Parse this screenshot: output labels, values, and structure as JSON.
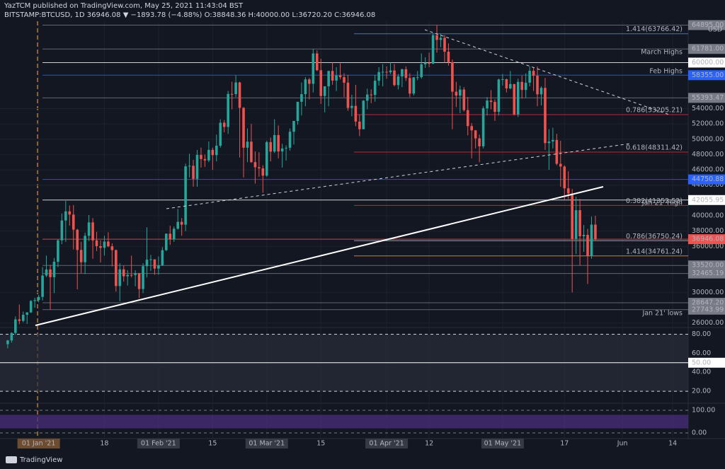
{
  "chart_data": {
    "type": "candlestick",
    "title": "YazTCM published on TradingView.com, May 25, 2021 11:43:04 BST",
    "subtitle": "BITSTAMP:BTCUSD, 1D  36946.08 ▼ −1893.78 (−4.88%) O:38848.36 H:40000.00 L:36720.20 C:36946.08",
    "unit": "USD",
    "footer": "TradingView",
    "up_color": "#26a69a",
    "down_color": "#ef5350",
    "grid": true,
    "xlim": [
      "2020-12-22",
      "2021-06-18"
    ],
    "xticks": [
      {
        "value": "2021-01-01",
        "label": "01 Jan '21"
      },
      {
        "value": "2021-01-18",
        "label": "18"
      },
      {
        "value": "2021-02-01",
        "label": "01 Feb '21"
      },
      {
        "value": "2021-02-15",
        "label": "15"
      },
      {
        "value": "2021-03-01",
        "label": "01 Mar '21"
      },
      {
        "value": "2021-03-15",
        "label": "15"
      },
      {
        "value": "2021-04-01",
        "label": "01 Apr '21"
      },
      {
        "value": "2021-04-12",
        "label": "12"
      },
      {
        "value": "2021-05-01",
        "label": "01 May '21"
      },
      {
        "value": "2021-05-17",
        "label": "17"
      },
      {
        "value": "2021-06-01",
        "label": "Jun"
      },
      {
        "value": "2021-06-14",
        "label": "14"
      }
    ],
    "ylim": [
      25600,
      65400
    ],
    "yticks": [
      {
        "value": 26000,
        "label": "26000.00"
      },
      {
        "value": 30000,
        "label": "30000.00"
      },
      {
        "value": 36000,
        "label": "36000.00"
      },
      {
        "value": 38000,
        "label": "38000.00"
      },
      {
        "value": 40000,
        "label": "40000.00"
      },
      {
        "value": 44000,
        "label": "44000.00"
      },
      {
        "value": 46000,
        "label": "46000.00"
      },
      {
        "value": 48000,
        "label": "48000.00"
      },
      {
        "value": 50000,
        "label": "50000.00"
      },
      {
        "value": 52000,
        "label": "52000.00"
      },
      {
        "value": 54000,
        "label": "54000.00"
      }
    ],
    "levels": [
      {
        "value": 64895,
        "label": "64895.00",
        "color": "#787b86"
      },
      {
        "value": 61781,
        "label": "61781.00",
        "color": "#787b86"
      },
      {
        "value": 60000,
        "label": "60000.00",
        "color": "#ffffff"
      },
      {
        "value": 58355,
        "label": "58355.00",
        "color": "#2962ff"
      },
      {
        "value": 55393.47,
        "label": "55393.47",
        "color": "#787b86"
      },
      {
        "value": 44750.88,
        "label": "44750.88",
        "color": "#2962ff"
      },
      {
        "value": 42055.95,
        "label": "42055.95",
        "color": "#ffffff"
      },
      {
        "value": 36946.08,
        "label": "36946.08",
        "color": "#ef5350"
      },
      {
        "value": 33520,
        "label": "33520.00",
        "color": "#787b86"
      },
      {
        "value": 32465.19,
        "label": "32465.19",
        "color": "#787b86"
      },
      {
        "value": 28647.2,
        "label": "28647.20",
        "color": "#787b86"
      },
      {
        "value": 27743.99,
        "label": "27743.99",
        "color": "#787b86"
      }
    ],
    "fib_levels": [
      {
        "value": 63766.42,
        "label": "1.414(63766.42)",
        "color": "#5b9cf6"
      },
      {
        "value": 53205.21,
        "label": "0.786(53205.21)",
        "color": "#f23645"
      },
      {
        "value": 48311.42,
        "label": "0.618(48311.42)",
        "color": "#f23645"
      },
      {
        "value": 41352.52,
        "label": "0.382(41352.52)",
        "color": "#f23645"
      },
      {
        "value": 36750.24,
        "label": "0.786(36750.24)",
        "color": "#d1d4dc"
      },
      {
        "value": 34761.24,
        "label": "1.414(34761.24)",
        "color": "#fbc02d"
      }
    ],
    "annotations": [
      "March Highs",
      "Feb Highs",
      "Jan 21' High",
      "Jan 21' lows"
    ],
    "rsi_ylim": [
      8.9,
      84.8
    ],
    "rsi_yticks": [
      {
        "value": 80,
        "label": "80.00"
      },
      {
        "value": 60,
        "label": "60.00"
      },
      {
        "value": 50,
        "label": "50.00"
      },
      {
        "value": 40,
        "label": "40.00"
      },
      {
        "value": 20,
        "label": "20.00"
      }
    ],
    "stoch_ylim": [
      -25,
      125
    ],
    "stoch_yticks": [
      {
        "value": 100,
        "label": "100.00"
      },
      {
        "value": 0,
        "label": "0.00"
      }
    ],
    "x": [
      "2020-12-24",
      "2020-12-25",
      "2020-12-26",
      "2020-12-27",
      "2020-12-28",
      "2020-12-29",
      "2020-12-30",
      "2020-12-31",
      "2021-01-01",
      "2021-01-02",
      "2021-01-03",
      "2021-01-04",
      "2021-01-05",
      "2021-01-06",
      "2021-01-07",
      "2021-01-08",
      "2021-01-09",
      "2021-01-10",
      "2021-01-11",
      "2021-01-12",
      "2021-01-13",
      "2021-01-14",
      "2021-01-15",
      "2021-01-16",
      "2021-01-17",
      "2021-01-18",
      "2021-01-19",
      "2021-01-20",
      "2021-01-21",
      "2021-01-22",
      "2021-01-23",
      "2021-01-24",
      "2021-01-25",
      "2021-01-26",
      "2021-01-27",
      "2021-01-28",
      "2021-01-29",
      "2021-01-30",
      "2021-01-31",
      "2021-02-01",
      "2021-02-02",
      "2021-02-03",
      "2021-02-04",
      "2021-02-05",
      "2021-02-06",
      "2021-02-07",
      "2021-02-08",
      "2021-02-09",
      "2021-02-10",
      "2021-02-11",
      "2021-02-12",
      "2021-02-13",
      "2021-02-14",
      "2021-02-15",
      "2021-02-16",
      "2021-02-17",
      "2021-02-18",
      "2021-02-19",
      "2021-02-20",
      "2021-02-21",
      "2021-02-22",
      "2021-02-23",
      "2021-02-24",
      "2021-02-25",
      "2021-02-26",
      "2021-02-27",
      "2021-02-28",
      "2021-03-01",
      "2021-03-02",
      "2021-03-03",
      "2021-03-04",
      "2021-03-05",
      "2021-03-06",
      "2021-03-07",
      "2021-03-08",
      "2021-03-09",
      "2021-03-10",
      "2021-03-11",
      "2021-03-12",
      "2021-03-13",
      "2021-03-14",
      "2021-03-15",
      "2021-03-16",
      "2021-03-17",
      "2021-03-18",
      "2021-03-19",
      "2021-03-20",
      "2021-03-21",
      "2021-03-22",
      "2021-03-23",
      "2021-03-24",
      "2021-03-25",
      "2021-03-26",
      "2021-03-27",
      "2021-03-28",
      "2021-03-29",
      "2021-03-30",
      "2021-03-31",
      "2021-04-01",
      "2021-04-02",
      "2021-04-03",
      "2021-04-04",
      "2021-04-05",
      "2021-04-06",
      "2021-04-07",
      "2021-04-08",
      "2021-04-09",
      "2021-04-10",
      "2021-04-11",
      "2021-04-12",
      "2021-04-13",
      "2021-04-14",
      "2021-04-15",
      "2021-04-16",
      "2021-04-17",
      "2021-04-18",
      "2021-04-19",
      "2021-04-20",
      "2021-04-21",
      "2021-04-22",
      "2021-04-23",
      "2021-04-24",
      "2021-04-25",
      "2021-04-26",
      "2021-04-27",
      "2021-04-28",
      "2021-04-29",
      "2021-04-30",
      "2021-05-01",
      "2021-05-02",
      "2021-05-03",
      "2021-05-04",
      "2021-05-05",
      "2021-05-06",
      "2021-05-07",
      "2021-05-08",
      "2021-05-09",
      "2021-05-10",
      "2021-05-11",
      "2021-05-12",
      "2021-05-13",
      "2021-05-14",
      "2021-05-15",
      "2021-05-16",
      "2021-05-17",
      "2021-05-18",
      "2021-05-19",
      "2021-05-20",
      "2021-05-21",
      "2021-05-22",
      "2021-05-23",
      "2021-05-24",
      "2021-05-25"
    ],
    "open": [
      23240,
      23730,
      24710,
      26480,
      26280,
      27080,
      27390,
      28880,
      28990,
      29410,
      32200,
      33000,
      31990,
      34000,
      36800,
      39390,
      40580,
      40160,
      38190,
      35540,
      33940,
      37390,
      39140,
      36790,
      36030,
      35820,
      36640,
      36020,
      35520,
      30830,
      33010,
      32100,
      32280,
      32270,
      32510,
      30440,
      33420,
      34270,
      34320,
      33110,
      33540,
      35510,
      37670,
      36950,
      38310,
      39210,
      38840,
      46450,
      46530,
      44820,
      47950,
      47410,
      47230,
      48610,
      47920,
      49150,
      52150,
      51600,
      55910,
      55890,
      57410,
      54090,
      48890,
      49680,
      47010,
      46340,
      46190,
      45240,
      49620,
      48380,
      50540,
      48400,
      48790,
      48880,
      50970,
      52380,
      54880,
      55880,
      57810,
      57230,
      61190,
      59000,
      55640,
      56910,
      58910,
      57650,
      58320,
      58100,
      57380,
      54080,
      54350,
      52300,
      51300,
      55030,
      55830,
      55780,
      57630,
      58770,
      58800,
      58740,
      58970,
      57060,
      58200,
      59130,
      57990,
      55950,
      58080,
      58090,
      59780,
      59980,
      59860,
      63580,
      62960,
      63230,
      61420,
      60060,
      56200,
      55690,
      56480,
      53800,
      51710,
      51150,
      50110,
      49070,
      54030,
      55040,
      54860,
      53570,
      57800,
      57830,
      56630,
      57200,
      53250,
      57480,
      56430,
      57380,
      58930,
      58280,
      55860,
      56700,
      49490,
      49700,
      49900,
      46790,
      46430,
      43590,
      42910,
      37000,
      40730,
      37330,
      37510,
      34770,
      38848.36
    ],
    "high": [
      23800,
      24790,
      26870,
      28420,
      27500,
      27410,
      28990,
      29300,
      29680,
      33300,
      34810,
      33600,
      34500,
      36940,
      40300,
      41950,
      41350,
      41400,
      38300,
      36600,
      37800,
      40100,
      39700,
      37900,
      36800,
      37400,
      37850,
      36400,
      35600,
      33800,
      33500,
      32900,
      34800,
      32900,
      32560,
      33800,
      38500,
      34900,
      34300,
      34700,
      35900,
      37700,
      38700,
      38600,
      40900,
      39700,
      46800,
      48100,
      47300,
      48600,
      48900,
      48000,
      49700,
      48900,
      50600,
      52600,
      52500,
      56300,
      57500,
      58355,
      57500,
      54200,
      51400,
      52000,
      48400,
      48300,
      46600,
      49800,
      50200,
      52600,
      51800,
      49400,
      49200,
      51400,
      52400,
      54900,
      57400,
      58100,
      58000,
      61781,
      61600,
      60500,
      56900,
      58950,
      60000,
      59400,
      59900,
      58600,
      58400,
      55800,
      57100,
      53200,
      55100,
      56600,
      56500,
      58400,
      59400,
      59800,
      59500,
      60000,
      59800,
      58500,
      59200,
      59500,
      58600,
      58100,
      58900,
      61200,
      60700,
      61300,
      63800,
      64895,
      63800,
      63600,
      62500,
      60400,
      57500,
      57000,
      56800,
      55500,
      52100,
      51200,
      50600,
      54300,
      55500,
      56400,
      55200,
      57900,
      58500,
      57900,
      58900,
      57200,
      57900,
      58300,
      58600,
      59500,
      59300,
      59500,
      56900,
      58000,
      51300,
      51500,
      50700,
      49800,
      46600,
      45800,
      43500,
      42500,
      42200,
      38800,
      38300,
      39900,
      40000
    ],
    "low": [
      22700,
      23450,
      24500,
      25850,
      26100,
      25880,
      27320,
      28000,
      28710,
      28950,
      32000,
      27740,
      29900,
      33300,
      36300,
      36600,
      38720,
      35600,
      30400,
      32500,
      32400,
      36700,
      34400,
      35400,
      33900,
      34800,
      35900,
      33400,
      30100,
      28850,
      31400,
      30900,
      31950,
      30800,
      29250,
      29900,
      31950,
      32800,
      32300,
      32300,
      33450,
      35400,
      36200,
      36600,
      38200,
      37400,
      38000,
      45000,
      43800,
      43800,
      46300,
      46400,
      47000,
      46000,
      47100,
      48900,
      50900,
      50700,
      53900,
      55500,
      47600,
      45000,
      47000,
      46900,
      44200,
      45100,
      43000,
      45100,
      47100,
      48200,
      47500,
      46300,
      47200,
      48500,
      49300,
      51900,
      53100,
      54300,
      55200,
      56100,
      58900,
      54600,
      53500,
      54300,
      57100,
      56300,
      57800,
      55500,
      53700,
      53000,
      51700,
      50400,
      51300,
      53900,
      54700,
      54900,
      57000,
      56900,
      57900,
      58500,
      56900,
      56500,
      56800,
      57600,
      55500,
      55700,
      57700,
      57900,
      59300,
      59400,
      59800,
      61300,
      62000,
      60000,
      59600,
      51300,
      54200,
      53400,
      53600,
      50500,
      47500,
      48800,
      47000,
      48800,
      53100,
      53900,
      52400,
      53100,
      57000,
      56100,
      56500,
      53100,
      52900,
      55300,
      55400,
      56900,
      56300,
      54300,
      54400,
      48600,
      46000,
      48800,
      46600,
      43800,
      42100,
      42200,
      30000,
      35000,
      33500,
      35300,
      31100,
      34400,
      36720.2
    ],
    "close": [
      23730,
      24710,
      26480,
      26280,
      27080,
      27390,
      28880,
      28990,
      29410,
      32200,
      33000,
      31990,
      34000,
      36800,
      39390,
      40580,
      40160,
      38190,
      35540,
      33940,
      37390,
      39140,
      36790,
      36030,
      35820,
      36640,
      36020,
      35520,
      30830,
      33010,
      32100,
      32280,
      32270,
      32510,
      30440,
      33420,
      34270,
      34320,
      33110,
      33540,
      35510,
      37670,
      36950,
      38310,
      39210,
      38840,
      46450,
      46530,
      44820,
      47950,
      47410,
      47230,
      48610,
      47920,
      49150,
      52150,
      51600,
      55910,
      55890,
      57410,
      54090,
      48890,
      49680,
      47010,
      46340,
      46190,
      45240,
      49620,
      48380,
      50540,
      48400,
      48790,
      48880,
      50970,
      52380,
      54880,
      55880,
      57810,
      57230,
      61190,
      59000,
      55640,
      56910,
      58910,
      57650,
      58320,
      58100,
      57380,
      54080,
      54350,
      52300,
      51300,
      55030,
      55830,
      55780,
      57630,
      58770,
      58800,
      58740,
      58970,
      57060,
      58200,
      59130,
      57990,
      55950,
      58080,
      58090,
      59780,
      59980,
      59860,
      63580,
      62960,
      63230,
      61420,
      60060,
      56200,
      55690,
      56480,
      53800,
      51710,
      51150,
      50110,
      49070,
      54030,
      55040,
      54860,
      53570,
      57800,
      57830,
      56630,
      57200,
      53250,
      57480,
      56430,
      57380,
      58930,
      58280,
      55860,
      56700,
      49490,
      49700,
      49900,
      46790,
      46430,
      43590,
      42910,
      37000,
      40730,
      37330,
      37510,
      34770,
      38848.36,
      36946.08
    ]
  }
}
